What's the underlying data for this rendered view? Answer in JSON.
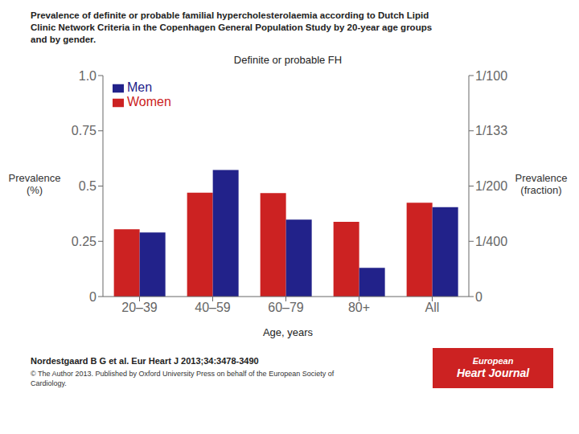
{
  "chart_data": {
    "type": "bar",
    "title": "Prevalence of definite or probable familial hypercholesterolaemia according to Dutch Lipid\nClinic Network Criteria in the Copenhagen General Population Study by 20-year age groups\nand by gender.",
    "xlabel": "Age, years",
    "ylabel": "Prevalence\n(%)",
    "y2label": "Prevalence\n(fraction)",
    "annotations": [
      "Definite or probable FH",
      "Nordestgaard B G et al. Eur Heart J 2013;34:3478-3490",
      "© The Author 2013. Published by Oxford University Press on behalf of the European Society of\nCardiology.",
      "European",
      "Heart Journal"
    ],
    "categories": [
      "20–39",
      "40–59",
      "60–79",
      "80+",
      "All"
    ],
    "series": [
      {
        "name": "Women",
        "color": "#CC2222",
        "values": [
          0.305,
          0.47,
          0.468,
          0.338,
          0.425
        ]
      },
      {
        "name": "Men",
        "color": "#22228A",
        "values": [
          0.29,
          0.573,
          0.348,
          0.13,
          0.405
        ]
      }
    ],
    "ylim": [
      0,
      1.0
    ],
    "yticks": [
      0,
      0.25,
      0.5,
      0.75,
      {
        "value": 1.0,
        "label": "1.0"
      }
    ],
    "y2lim": [
      0,
      1.0
    ],
    "y2ticks": [
      0,
      {
        "value": 0.25,
        "label": "1/400"
      },
      {
        "value": 0.5,
        "label": "1/200"
      },
      {
        "value": 0.75,
        "label": "1/133"
      },
      {
        "value": 1.0,
        "label": "1/100"
      }
    ],
    "grid": false,
    "legend": "upper left"
  }
}
